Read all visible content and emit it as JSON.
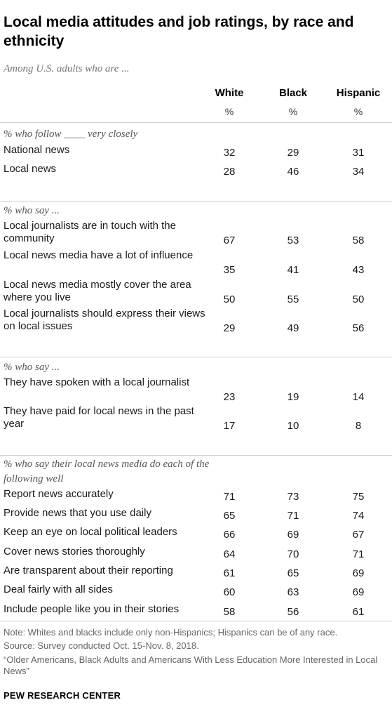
{
  "title": "Local media attitudes and job ratings, by race and ethnicity",
  "subtitle": "Among U.S. adults who are ...",
  "columns": [
    {
      "label": "White",
      "unit": "%"
    },
    {
      "label": "Black",
      "unit": "%"
    },
    {
      "label": "Hispanic",
      "unit": "%"
    }
  ],
  "chart_data": {
    "type": "table",
    "title": "Local media attitudes and job ratings, by race and ethnicity",
    "subtitle": "Among U.S. adults who are ...",
    "columns": [
      "White",
      "Black",
      "Hispanic"
    ],
    "sections": [
      {
        "label": "% who follow ____ very closely",
        "rows": [
          {
            "label": "National news",
            "values": [
              32,
              29,
              31
            ]
          },
          {
            "label": "Local news",
            "values": [
              28,
              46,
              34
            ]
          }
        ]
      },
      {
        "label": "% who say ...",
        "rows": [
          {
            "label": "Local journalists are in touch with the community",
            "values": [
              67,
              53,
              58
            ]
          },
          {
            "label": "Local news media have a lot of influence",
            "values": [
              35,
              41,
              43
            ]
          },
          {
            "label": "Local news media mostly cover the area where you live",
            "values": [
              50,
              55,
              50
            ]
          },
          {
            "label": "Local journalists should express their views on local issues",
            "values": [
              29,
              49,
              56
            ]
          }
        ]
      },
      {
        "label": "% who say ...",
        "rows": [
          {
            "label": "They have spoken with a local journalist",
            "values": [
              23,
              19,
              14
            ]
          },
          {
            "label": "They have paid for local news in the past year",
            "values": [
              17,
              10,
              8
            ]
          }
        ]
      },
      {
        "label": "% who say their local news media do each of the following well",
        "rows": [
          {
            "label": "Report news accurately",
            "values": [
              71,
              73,
              75
            ]
          },
          {
            "label": "Provide news that you use daily",
            "values": [
              65,
              71,
              74
            ]
          },
          {
            "label": "Keep an eye on local political leaders",
            "values": [
              66,
              69,
              67
            ]
          },
          {
            "label": "Cover news stories thoroughly",
            "values": [
              64,
              70,
              71
            ]
          },
          {
            "label": "Are transparent about their reporting",
            "values": [
              61,
              65,
              69
            ]
          },
          {
            "label": "Deal fairly with all sides",
            "values": [
              60,
              63,
              69
            ]
          },
          {
            "label": "Include people like you in their stories",
            "values": [
              58,
              56,
              61
            ]
          }
        ]
      }
    ]
  },
  "notes": {
    "note": "Note: Whites and blacks include only non-Hispanics; Hispanics can be of any race.",
    "source": "Source: Survey conducted Oct. 15-Nov. 8, 2018.",
    "report": "“Older Americans, Black Adults and Americans With Less Education More Interested in Local News”"
  },
  "brand": "PEW RESEARCH CENTER"
}
